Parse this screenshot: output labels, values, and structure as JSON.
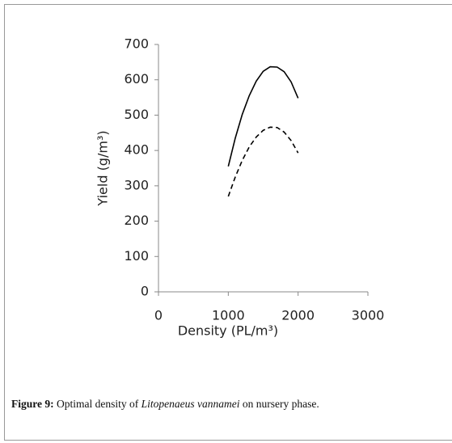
{
  "chart_data": {
    "type": "line",
    "x": [
      1000,
      1100,
      1200,
      1300,
      1400,
      1500,
      1600,
      1700,
      1800,
      1900,
      2000
    ],
    "series": [
      {
        "color": "#000000",
        "dashed": false,
        "values": [
          355,
          435,
          502,
          555,
          596,
          624,
          637,
          636,
          623,
          594,
          548
        ]
      },
      {
        "color": "#000000",
        "dashed": true,
        "values": [
          270,
          325,
          372,
          410,
          438,
          457,
          466,
          465,
          452,
          428,
          393
        ]
      }
    ],
    "xlim": [
      0,
      3000
    ],
    "xticks": [
      0,
      1000,
      2000,
      3000
    ],
    "ylim": [
      0,
      700
    ],
    "yticks": [
      0,
      100,
      200,
      300,
      400,
      500,
      600,
      700
    ],
    "xlabel": "Density (PL/m³)",
    "ylabel": "Yield (g/m³)",
    "grid": false
  },
  "caption": {
    "label": "Figure 9:",
    "text_before": "Optimal density of",
    "species": "Litopenaeus vannamei",
    "text_after": "on nursery phase."
  }
}
